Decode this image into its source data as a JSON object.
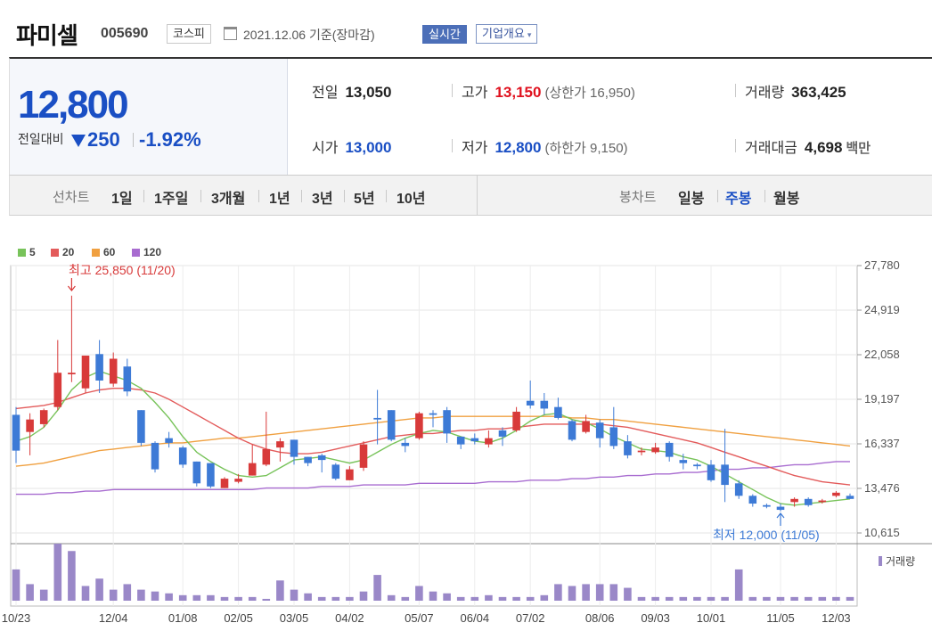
{
  "header": {
    "company": "파미셀",
    "code": "005690",
    "market": "코스피",
    "date": "2021.12.06 기준(장마감)",
    "realtime": "실시간",
    "corp_info": "기업개요",
    "corp_caret": "▾"
  },
  "price": {
    "current": "12,800",
    "change_label": "전일대비",
    "change_value": "250",
    "change_pct": "-1.92%",
    "prev_close_label": "전일",
    "prev_close": "13,050",
    "high_label": "고가",
    "high": "13,150",
    "upper_limit": "(상한가 16,950)",
    "volume_label": "거래량",
    "volume": "363,425",
    "open_label": "시가",
    "open": "13,000",
    "low_label": "저가",
    "low": "12,800",
    "lower_limit": "(하한가 9,150)",
    "amount_label": "거래대금",
    "amount": "4,698",
    "amount_unit": "백만"
  },
  "periods": {
    "line_label": "선차트",
    "line_items": [
      "1일",
      "1주일",
      "3개월",
      "1년",
      "3년",
      "5년",
      "10년"
    ],
    "candle_label": "봉차트",
    "candle_items": [
      "일봉",
      "주봉",
      "월봉"
    ],
    "candle_selected": 1
  },
  "colors": {
    "up": "#d83a3a",
    "down": "#3d7ad6",
    "ma5": "#78c35a",
    "ma20": "#e35b5b",
    "ma60": "#f0a040",
    "ma120": "#a86cd0",
    "volume": "#9a88c8"
  },
  "chart_data": {
    "type": "candlestick",
    "legend": [
      "5",
      "20",
      "60",
      "120"
    ],
    "y_ticks": [
      "27,780",
      "24,919",
      "22,058",
      "19,197",
      "16,337",
      "13,476",
      "10,615"
    ],
    "ylim": [
      10615,
      27780
    ],
    "x_ticks": [
      "10/23",
      "12/04",
      "01/08",
      "02/05",
      "03/05",
      "04/02",
      "05/07",
      "06/04",
      "07/02",
      "08/06",
      "09/03",
      "10/01",
      "11/05",
      "12/03"
    ],
    "annotation_high": "최고 25,850 (11/20)",
    "annotation_low": "최저 12,000 (11/05)",
    "volume_label": "거래량",
    "candles": [
      [
        18200,
        15900,
        18700,
        15100
      ],
      [
        17100,
        17900,
        18300,
        15600
      ],
      [
        17600,
        18500,
        18600,
        17400
      ],
      [
        18700,
        20900,
        23000,
        18500
      ],
      [
        20800,
        20900,
        25850,
        20300
      ],
      [
        19900,
        22000,
        22000,
        19600
      ],
      [
        22100,
        20400,
        23000,
        19600
      ],
      [
        20200,
        21800,
        22200,
        20000
      ],
      [
        21300,
        19700,
        21800,
        19400
      ],
      [
        18500,
        16400,
        18500,
        16200
      ],
      [
        16400,
        14700,
        16500,
        14500
      ],
      [
        16700,
        16400,
        17100,
        16100
      ],
      [
        16100,
        15000,
        16200,
        14800
      ],
      [
        15200,
        13800,
        15200,
        13600
      ],
      [
        15100,
        13600,
        15100,
        13500
      ],
      [
        13500,
        14100,
        14200,
        13500
      ],
      [
        13900,
        14100,
        14400,
        13800
      ],
      [
        14300,
        15100,
        16300,
        14300
      ],
      [
        15000,
        16000,
        18400,
        14900
      ],
      [
        16100,
        16500,
        16700,
        15200
      ],
      [
        16600,
        15500,
        16600,
        15000
      ],
      [
        15500,
        15100,
        15500,
        14900
      ],
      [
        15600,
        15300,
        15700,
        14500
      ],
      [
        15000,
        14100,
        15100,
        14000
      ],
      [
        14000,
        14700,
        14900,
        14000
      ],
      [
        14800,
        16300,
        16500,
        14600
      ],
      [
        18000,
        17900,
        19800,
        16300
      ],
      [
        18500,
        16600,
        18500,
        16500
      ],
      [
        16400,
        16200,
        16700,
        15800
      ],
      [
        16700,
        18300,
        18400,
        16600
      ],
      [
        18300,
        18200,
        18500,
        17400
      ],
      [
        18500,
        17000,
        18700,
        16400
      ],
      [
        16800,
        16300,
        16800,
        16000
      ],
      [
        16700,
        16500,
        17000,
        16300
      ],
      [
        16300,
        16700,
        17200,
        16100
      ],
      [
        17200,
        16800,
        17400,
        16200
      ],
      [
        17200,
        18400,
        18700,
        17100
      ],
      [
        19100,
        18800,
        20400,
        18600
      ],
      [
        19100,
        18600,
        19600,
        18200
      ],
      [
        18700,
        18000,
        19300,
        17900
      ],
      [
        17800,
        16600,
        17900,
        16500
      ],
      [
        17100,
        17800,
        18200,
        17000
      ],
      [
        17700,
        16700,
        17900,
        16100
      ],
      [
        17400,
        16200,
        18700,
        16000
      ],
      [
        16500,
        15600,
        16900,
        15400
      ],
      [
        15800,
        15900,
        16100,
        15600
      ],
      [
        15800,
        16100,
        16400,
        15700
      ],
      [
        16400,
        15500,
        16500,
        15200
      ],
      [
        15300,
        15100,
        15700,
        14700
      ],
      [
        15000,
        14900,
        15100,
        14700
      ],
      [
        15000,
        14000,
        15300,
        13900
      ],
      [
        15000,
        13700,
        17300,
        12600
      ],
      [
        13800,
        13000,
        14000,
        12800
      ],
      [
        13000,
        12500,
        13100,
        12300
      ],
      [
        12400,
        12300,
        12500,
        12200
      ],
      [
        12300,
        12100,
        12500,
        12000
      ],
      [
        12600,
        12800,
        12900,
        12300
      ],
      [
        12800,
        12400,
        12900,
        12300
      ],
      [
        12600,
        12700,
        12800,
        12500
      ],
      [
        13000,
        13200,
        13300,
        12900
      ],
      [
        13000,
        12800,
        13150,
        12800
      ]
    ],
    "volume": [
      17,
      9,
      6,
      31,
      27,
      8,
      12,
      6,
      9,
      6,
      5,
      4,
      3,
      3,
      3,
      2,
      2,
      2,
      1,
      11,
      6,
      4,
      2,
      2,
      2,
      5,
      14,
      3,
      2,
      8,
      5,
      4,
      2,
      2,
      3,
      2,
      2,
      2,
      3,
      9,
      8,
      9,
      9,
      9,
      7,
      2,
      2,
      2,
      2,
      2,
      2,
      2,
      17,
      2,
      2,
      2,
      2,
      2,
      2,
      2,
      2
    ],
    "ma5": [
      16500,
      16800,
      17400,
      18500,
      19800,
      20600,
      21000,
      20700,
      20400,
      19900,
      19000,
      18000,
      16800,
      15800,
      15200,
      14700,
      14300,
      14200,
      14300,
      14800,
      15300,
      15400,
      15500,
      15300,
      15100,
      15300,
      15800,
      16300,
      16700,
      17000,
      17200,
      17100,
      16800,
      16500,
      16400,
      16700,
      17200,
      17800,
      18200,
      18300,
      17900,
      17700,
      17300,
      16800,
      16400,
      16000,
      15900,
      15800,
      15500,
      15300,
      14900,
      14400,
      13900,
      13400,
      12900,
      12500,
      12400,
      12500,
      12600,
      12700,
      12800
    ],
    "ma20": [
      18600,
      18700,
      18800,
      19000,
      19300,
      19600,
      19800,
      19900,
      19900,
      19800,
      19600,
      19200,
      18700,
      18200,
      17700,
      17200,
      16700,
      16300,
      16000,
      15800,
      15700,
      15700,
      15800,
      16000,
      16200,
      16400,
      16600,
      16800,
      16900,
      17000,
      17000,
      17100,
      17200,
      17200,
      17300,
      17300,
      17400,
      17500,
      17600,
      17600,
      17600,
      17600,
      17600,
      17500,
      17400,
      17200,
      17000,
      16800,
      16600,
      16400,
      16100,
      15800,
      15500,
      15200,
      14900,
      14600,
      14300,
      14100,
      13900,
      13800,
      13700
    ],
    "ma60": [
      14900,
      15000,
      15100,
      15300,
      15500,
      15700,
      15900,
      16000,
      16100,
      16200,
      16300,
      16400,
      16400,
      16500,
      16600,
      16700,
      16700,
      16800,
      16900,
      17000,
      17100,
      17200,
      17300,
      17400,
      17500,
      17600,
      17700,
      17800,
      17900,
      18000,
      18000,
      18100,
      18100,
      18100,
      18100,
      18100,
      18100,
      18100,
      18100,
      18100,
      18000,
      18000,
      17900,
      17900,
      17800,
      17700,
      17600,
      17500,
      17400,
      17300,
      17200,
      17100,
      17000,
      16900,
      16800,
      16700,
      16600,
      16500,
      16400,
      16300,
      16200
    ],
    "ma120": [
      13100,
      13100,
      13100,
      13200,
      13200,
      13300,
      13300,
      13400,
      13400,
      13400,
      13400,
      13400,
      13400,
      13400,
      13400,
      13400,
      13400,
      13400,
      13500,
      13500,
      13500,
      13500,
      13600,
      13600,
      13600,
      13700,
      13700,
      13700,
      13700,
      13800,
      13800,
      13800,
      13800,
      13800,
      13900,
      13900,
      13900,
      14000,
      14000,
      14000,
      14100,
      14100,
      14200,
      14200,
      14300,
      14300,
      14400,
      14400,
      14500,
      14500,
      14600,
      14700,
      14700,
      14800,
      14800,
      14900,
      15000,
      15000,
      15100,
      15200,
      15200
    ]
  }
}
